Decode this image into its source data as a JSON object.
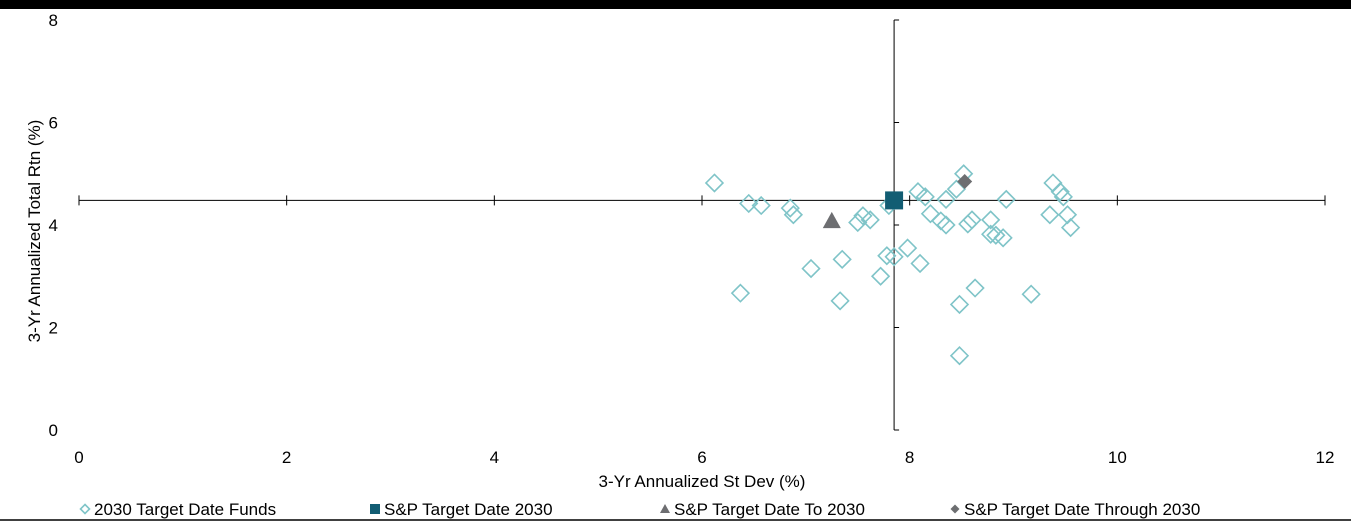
{
  "chart_data": {
    "type": "scatter",
    "xlabel": "3-Yr Annualized St Dev (%)",
    "ylabel": "3-Yr Annualized Total Rtn (%)",
    "xlim": [
      0,
      12
    ],
    "ylim": [
      0,
      8
    ],
    "x_ticks": [
      "0",
      "2",
      "4",
      "6",
      "8",
      "10",
      "12"
    ],
    "y_ticks": [
      "0",
      "2",
      "4",
      "6",
      "8"
    ],
    "crosshair": {
      "x": 7.85,
      "y": 4.48
    },
    "legend_position": "bottom",
    "series": [
      {
        "name": "2030 Target Date Funds",
        "marker": "diamond-open",
        "color": "#7FC4C8",
        "points": [
          [
            6.12,
            4.82
          ],
          [
            6.37,
            2.67
          ],
          [
            6.45,
            4.42
          ],
          [
            6.57,
            4.38
          ],
          [
            6.85,
            4.33
          ],
          [
            6.88,
            4.2
          ],
          [
            7.05,
            3.15
          ],
          [
            7.33,
            2.52
          ],
          [
            7.35,
            3.33
          ],
          [
            7.5,
            4.05
          ],
          [
            7.55,
            4.18
          ],
          [
            7.62,
            4.1
          ],
          [
            7.72,
            3.0
          ],
          [
            7.78,
            3.4
          ],
          [
            7.8,
            4.38
          ],
          [
            7.85,
            3.38
          ],
          [
            7.98,
            3.55
          ],
          [
            8.08,
            4.65
          ],
          [
            8.1,
            3.25
          ],
          [
            8.15,
            4.55
          ],
          [
            8.2,
            4.22
          ],
          [
            8.3,
            4.08
          ],
          [
            8.35,
            4.0
          ],
          [
            8.35,
            4.5
          ],
          [
            8.45,
            4.7
          ],
          [
            8.48,
            1.45
          ],
          [
            8.48,
            2.45
          ],
          [
            8.52,
            5.0
          ],
          [
            8.56,
            4.02
          ],
          [
            8.6,
            4.1
          ],
          [
            8.63,
            2.77
          ],
          [
            8.78,
            4.1
          ],
          [
            8.78,
            3.82
          ],
          [
            8.83,
            3.8
          ],
          [
            8.9,
            3.75
          ],
          [
            8.93,
            4.5
          ],
          [
            9.17,
            2.65
          ],
          [
            9.35,
            4.2
          ],
          [
            9.38,
            4.82
          ],
          [
            9.45,
            4.65
          ],
          [
            9.48,
            4.55
          ],
          [
            9.52,
            4.2
          ],
          [
            9.55,
            3.95
          ]
        ]
      },
      {
        "name": "S&P Target Date 2030",
        "marker": "square",
        "color": "#125D73",
        "points": [
          [
            7.85,
            4.48
          ]
        ]
      },
      {
        "name": "S&P Target Date To 2030",
        "marker": "triangle",
        "color": "#6D6E71",
        "points": [
          [
            7.25,
            4.08
          ]
        ]
      },
      {
        "name": "S&P Target Date Through 2030",
        "marker": "diamond",
        "color": "#6D6E71",
        "points": [
          [
            8.53,
            4.85
          ]
        ]
      }
    ]
  }
}
